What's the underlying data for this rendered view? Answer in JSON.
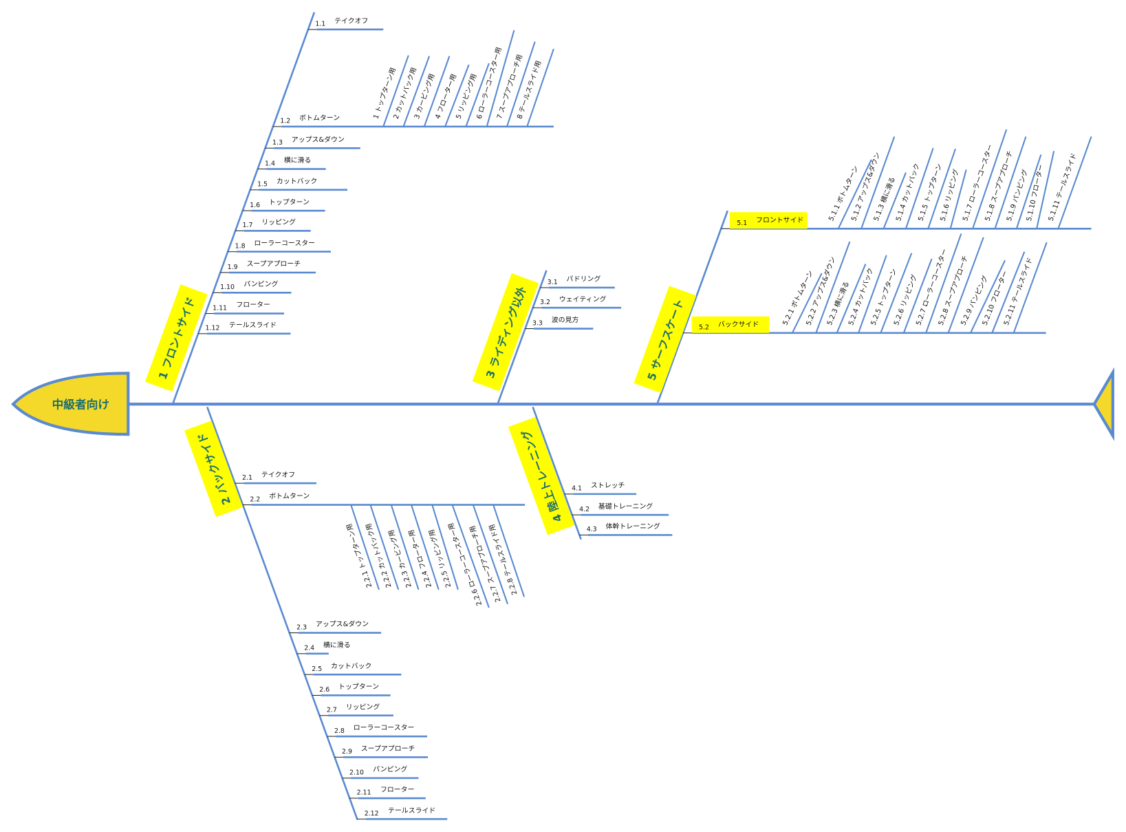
{
  "colors": {
    "line": "#5a8ad0",
    "label_bg": "#ffff00",
    "head_fill": "#f4d92a",
    "label_text": "#1d6f6c"
  },
  "head": {
    "label": "中級者向け"
  },
  "branches": [
    {
      "number": "1",
      "label": "フロントサイド",
      "items": [
        {
          "num": "1.1",
          "text": "テイクオフ"
        },
        {
          "num": "1.2",
          "text": "ボトムターン",
          "subs": [
            {
              "num": "1",
              "text": "トップターン用"
            },
            {
              "num": "2",
              "text": "カットバック用"
            },
            {
              "num": "3",
              "text": "カービング用"
            },
            {
              "num": "4",
              "text": "フローター用"
            },
            {
              "num": "5",
              "text": "リッピング用"
            },
            {
              "num": "6",
              "text": "ローラーコースター用"
            },
            {
              "num": "7",
              "text": "スープアプローチ用"
            },
            {
              "num": "8",
              "text": "テールスライド用"
            }
          ]
        },
        {
          "num": "1.3",
          "text": "アップス&ダウン"
        },
        {
          "num": "1.4",
          "text": "横に滑る"
        },
        {
          "num": "1.5",
          "text": "カットバック"
        },
        {
          "num": "1.6",
          "text": "トップターン"
        },
        {
          "num": "1.7",
          "text": "リッピング"
        },
        {
          "num": "1.8",
          "text": "ローラーコースター"
        },
        {
          "num": "1.9",
          "text": "スープアプローチ"
        },
        {
          "num": "1.10",
          "text": "パンピング"
        },
        {
          "num": "1.11",
          "text": "フローター"
        },
        {
          "num": "1.12",
          "text": "テールスライド"
        }
      ]
    },
    {
      "number": "2",
      "label": "バックサイド",
      "items": [
        {
          "num": "2.1",
          "text": "テイクオフ"
        },
        {
          "num": "2.2",
          "text": "ボトムターン",
          "subs": [
            {
              "num": "2.2.1",
              "text": "トップターン用"
            },
            {
              "num": "2.2.2",
              "text": "カットバック用"
            },
            {
              "num": "2.2.3",
              "text": "カービング用"
            },
            {
              "num": "2.2.4",
              "text": "フローター用"
            },
            {
              "num": "2.2.5",
              "text": "リッピング用"
            },
            {
              "num": "2.2.6",
              "text": "ローラーコースター用"
            },
            {
              "num": "2.2.7",
              "text": "スープアプローチ用"
            },
            {
              "num": "2.2.8",
              "text": "テールスライド用"
            }
          ]
        },
        {
          "num": "2.3",
          "text": "アップス&ダウン"
        },
        {
          "num": "2.4",
          "text": "横に滑る"
        },
        {
          "num": "2.5",
          "text": "カットバック"
        },
        {
          "num": "2.6",
          "text": "トップターン"
        },
        {
          "num": "2.7",
          "text": "リッピング"
        },
        {
          "num": "2.8",
          "text": "ローラーコースター"
        },
        {
          "num": "2.9",
          "text": "スープアプローチ"
        },
        {
          "num": "2.10",
          "text": "パンピング"
        },
        {
          "num": "2.11",
          "text": "フローター"
        },
        {
          "num": "2.12",
          "text": "テールスライド"
        }
      ]
    },
    {
      "number": "3",
      "label": "ライディング以外",
      "items": [
        {
          "num": "3.1",
          "text": "パドリング"
        },
        {
          "num": "3.2",
          "text": "ウェイティング"
        },
        {
          "num": "3.3",
          "text": "波の見方"
        }
      ]
    },
    {
      "number": "4",
      "label": "陸上トレーニング",
      "items": [
        {
          "num": "4.1",
          "text": "ストレッチ"
        },
        {
          "num": "4.2",
          "text": "基礎トレーニング"
        },
        {
          "num": "4.3",
          "text": "体幹トレーニング"
        }
      ]
    },
    {
      "number": "5",
      "label": "サーフスケート",
      "items": [
        {
          "num": "5.1",
          "text": "フロントサイド",
          "subs": [
            {
              "num": "5.1.1",
              "text": "ボトムターン"
            },
            {
              "num": "5.1.2",
              "text": "アップス&ダウン"
            },
            {
              "num": "5.1.3",
              "text": "横に滑る"
            },
            {
              "num": "5.1.4",
              "text": "カットバック"
            },
            {
              "num": "5.1.5",
              "text": "トップターン"
            },
            {
              "num": "5.1.6",
              "text": "リッピング"
            },
            {
              "num": "5.1.7",
              "text": "ローラーコースター"
            },
            {
              "num": "5.1.8",
              "text": "スープアプローチ"
            },
            {
              "num": "5.1.9",
              "text": "パンピング"
            },
            {
              "num": "5.1.10",
              "text": "フローター"
            },
            {
              "num": "5.1.11",
              "text": "テールスライド"
            }
          ]
        },
        {
          "num": "5.2",
          "text": "バックサイド",
          "subs": [
            {
              "num": "5.2.1",
              "text": "ボトムターン"
            },
            {
              "num": "5.2.2",
              "text": "アップス&ダウン"
            },
            {
              "num": "5.2.3",
              "text": "横に滑る"
            },
            {
              "num": "5.2.4",
              "text": "カットバック"
            },
            {
              "num": "5.2.5",
              "text": "トップターン"
            },
            {
              "num": "5.2.6",
              "text": "リッピング"
            },
            {
              "num": "5.2.7",
              "text": "ローラーコースター"
            },
            {
              "num": "5.2.8",
              "text": "スープアプローチ"
            },
            {
              "num": "5.2.9",
              "text": "パンピング"
            },
            {
              "num": "5.2.10",
              "text": "フローター"
            },
            {
              "num": "5.2.11",
              "text": "テールスライド"
            }
          ]
        }
      ]
    }
  ]
}
